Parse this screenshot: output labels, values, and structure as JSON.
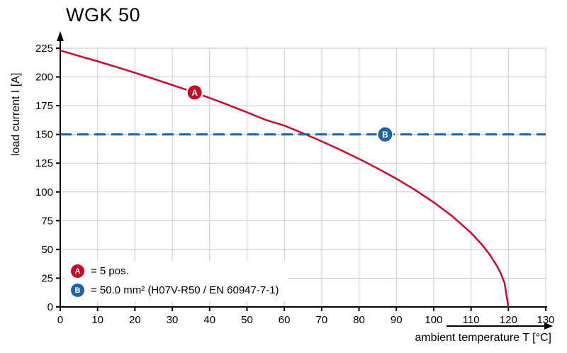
{
  "chart_data": {
    "type": "line",
    "title": "WGK 50",
    "xlabel": "ambient temperature T [°C]",
    "ylabel": "load current I [A]",
    "xlim": [
      0,
      130
    ],
    "ylim": [
      0,
      225
    ],
    "xticks": [
      0,
      10,
      20,
      30,
      40,
      50,
      60,
      70,
      80,
      90,
      100,
      110,
      120,
      130
    ],
    "yticks": [
      0,
      25,
      50,
      75,
      100,
      125,
      150,
      175,
      200,
      225
    ],
    "grid": true,
    "colors": {
      "grid": "#c9c9c9",
      "axis": "#000000"
    },
    "series": [
      {
        "name": "A",
        "type": "curve",
        "color": "#c9082a",
        "points": [
          [
            0,
            223
          ],
          [
            5,
            218.3
          ],
          [
            10,
            213.6
          ],
          [
            15,
            208.7
          ],
          [
            20,
            203.6
          ],
          [
            25,
            198.4
          ],
          [
            30,
            193.0
          ],
          [
            35,
            187.5
          ],
          [
            40,
            181.7
          ],
          [
            45,
            175.6
          ],
          [
            50,
            169.3
          ],
          [
            55,
            162.7
          ],
          [
            60,
            157.7
          ],
          [
            65,
            151.0
          ],
          [
            70,
            144.0
          ],
          [
            75,
            136.6
          ],
          [
            80,
            128.8
          ],
          [
            85,
            120.4
          ],
          [
            90,
            111.5
          ],
          [
            95,
            101.8
          ],
          [
            100,
            91.0
          ],
          [
            105,
            78.8
          ],
          [
            110,
            64.4
          ],
          [
            113,
            53.9
          ],
          [
            115,
            45.5
          ],
          [
            117,
            35.3
          ],
          [
            118,
            28.8
          ],
          [
            119,
            20.4
          ],
          [
            120,
            0
          ]
        ],
        "marker": {
          "x": 36,
          "y": 186.5,
          "letter": "A"
        }
      },
      {
        "name": "B",
        "type": "dashed-horizontal",
        "color": "#1f63ad",
        "y": 150,
        "marker": {
          "x": 87,
          "y": 150,
          "letter": "B"
        }
      }
    ],
    "legend": {
      "position": "bottom-left",
      "items": [
        {
          "letter": "A",
          "color": "#c9082a",
          "text": "= 5 pos."
        },
        {
          "letter": "B",
          "color": "#1f63ad",
          "text": "= 50.0 mm² (H07V-R50 / EN 60947-7-1)"
        }
      ]
    }
  }
}
